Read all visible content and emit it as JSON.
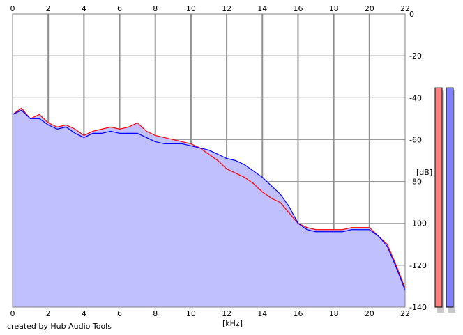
{
  "credit": "created by Hub Audio Tools",
  "chart_data": {
    "type": "area",
    "xlabel": "[kHz]",
    "ylabel": "[dB]",
    "xlim": [
      0,
      22
    ],
    "ylim": [
      -140,
      0
    ],
    "x_ticks": [
      0,
      2,
      4,
      6,
      8,
      10,
      12,
      14,
      16,
      18,
      20,
      22
    ],
    "y_ticks": [
      0,
      -20,
      -40,
      -60,
      -80,
      -100,
      -120,
      -140
    ],
    "grid": true,
    "series": [
      {
        "color": "#ff0000",
        "x": [
          0,
          0.5,
          1,
          1.5,
          2,
          2.5,
          3,
          3.5,
          4,
          4.5,
          5,
          5.5,
          6,
          6.5,
          7,
          7.5,
          8,
          8.5,
          9,
          9.5,
          10,
          10.5,
          11,
          11.5,
          12,
          12.5,
          13,
          13.5,
          14,
          14.5,
          15,
          15.5,
          16,
          16.5,
          17,
          17.5,
          18,
          18.5,
          19,
          19.5,
          20,
          20.5,
          21,
          21.5,
          22
        ],
        "y": [
          -48,
          -45,
          -50,
          -48,
          -52,
          -54,
          -53,
          -55,
          -58,
          -56,
          -55,
          -54,
          -55,
          -54,
          -52,
          -56,
          -58,
          -59,
          -60,
          -61,
          -62,
          -64,
          -67,
          -70,
          -74,
          -76,
          -78,
          -81,
          -85,
          -88,
          -90,
          -95,
          -100,
          -102,
          -103,
          -103,
          -103,
          -103,
          -102,
          -102,
          -102,
          -106,
          -110,
          -120,
          -131
        ]
      },
      {
        "color": "#0000ff",
        "x": [
          0,
          0.5,
          1,
          1.5,
          2,
          2.5,
          3,
          3.5,
          4,
          4.5,
          5,
          5.5,
          6,
          6.5,
          7,
          7.5,
          8,
          8.5,
          9,
          9.5,
          10,
          10.5,
          11,
          11.5,
          12,
          12.5,
          13,
          13.5,
          14,
          14.5,
          15,
          15.5,
          16,
          16.5,
          17,
          17.5,
          18,
          18.5,
          19,
          19.5,
          20,
          20.5,
          21,
          21.5,
          22
        ],
        "y": [
          -48,
          -46,
          -50,
          -50,
          -53,
          -55,
          -54,
          -57,
          -59,
          -57,
          -57,
          -56,
          -57,
          -57,
          -57,
          -59,
          -61,
          -62,
          -62,
          -62,
          -63,
          -64,
          -65,
          -67,
          -69,
          -70,
          -72,
          -75,
          -78,
          -82,
          -86,
          -92,
          -100,
          -103,
          -104,
          -104,
          -104,
          -104,
          -103,
          -103,
          -103,
          -106,
          -111,
          -121,
          -132
        ]
      }
    ],
    "level_meters": [
      {
        "color": "#ff8080",
        "value_db": -18
      },
      {
        "color": "#8080ff",
        "value_db": -18
      }
    ],
    "fill_color": "#c0c0ff"
  }
}
